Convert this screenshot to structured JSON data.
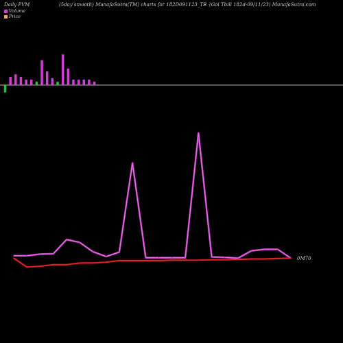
{
  "header": {
    "left": "Daily PVM",
    "middle": "(5day smooth) MunafaSutra(TM) charts for 182D091123_TB",
    "right": "(Goi  Tbill 182d-09/11/23) MunafaSutra.com"
  },
  "legend": {
    "volume_label": "Volume",
    "price_label": "Price",
    "volume_color": "#d040d0",
    "price_color": "#f0a070"
  },
  "chart_data": {
    "type": "line",
    "volume_bars": {
      "values": [
        -1.5,
        1.7,
        2.2,
        1.7,
        1.1,
        1.1,
        0.7,
        5.1,
        2.8,
        1.4,
        0.7,
        6.3,
        3.4,
        1.1,
        1.1,
        1.1,
        1.1,
        0.7
      ],
      "colors": [
        "green",
        "magenta",
        "magenta",
        "magenta",
        "magenta",
        "magenta",
        "green",
        "magenta",
        "magenta",
        "magenta",
        "green",
        "magenta",
        "magenta",
        "magenta",
        "magenta",
        "magenta",
        "magenta",
        "magenta"
      ],
      "ylim": [
        -2,
        7
      ]
    },
    "series": [
      {
        "values": [
          3,
          3,
          5,
          5.5,
          23,
          19.5,
          8,
          2,
          7.5,
          118,
          0.5,
          0.5,
          0.5,
          0.5,
          155,
          1.5,
          1,
          0,
          9,
          11,
          11,
          0
        ]
      },
      {
        "values": [
          0,
          -11,
          -10,
          -8,
          -8,
          -6,
          -6,
          -5,
          -3,
          -3,
          -3,
          -3,
          -2.5,
          -2.5,
          -2.5,
          -2,
          -2,
          -1.5,
          -1,
          -1,
          -0.5,
          0
        ]
      }
    ],
    "ylim": [
      -15,
      165
    ],
    "end_label": "0M70",
    "colors": {
      "series_1": "#c040c0",
      "series_2": "#e02020",
      "baseline": "#bbbbbb"
    }
  }
}
